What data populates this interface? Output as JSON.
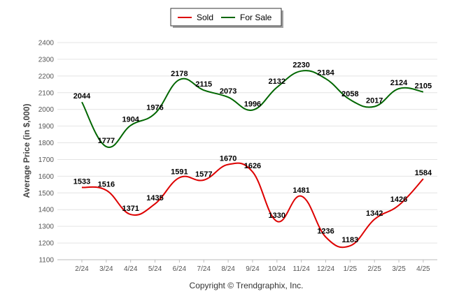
{
  "chart_data": {
    "type": "line",
    "categories": [
      "2/24",
      "3/24",
      "4/24",
      "5/24",
      "6/24",
      "7/24",
      "8/24",
      "9/24",
      "10/24",
      "11/24",
      "12/24",
      "1/25",
      "2/25",
      "3/25",
      "4/25"
    ],
    "series": [
      {
        "name": "Sold",
        "color": "#dd0000",
        "values": [
          1533,
          1516,
          1371,
          1435,
          1591,
          1577,
          1670,
          1626,
          1330,
          1481,
          1236,
          1183,
          1342,
          1426,
          1584
        ]
      },
      {
        "name": "For Sale",
        "color": "#006600",
        "values": [
          2044,
          1777,
          1904,
          1976,
          2178,
          2115,
          2073,
          1996,
          2132,
          2230,
          2184,
          2058,
          2017,
          2124,
          2105
        ]
      }
    ],
    "ylabel": "Average Price (in $,000)",
    "ylim": [
      1100,
      2400
    ],
    "yticks": [
      1100,
      1200,
      1300,
      1400,
      1500,
      1600,
      1700,
      1800,
      1900,
      2000,
      2100,
      2200,
      2300,
      2400
    ],
    "grid": true,
    "legend_position": "top-center",
    "footer": "Copyright © Trendgraphix, Inc."
  }
}
